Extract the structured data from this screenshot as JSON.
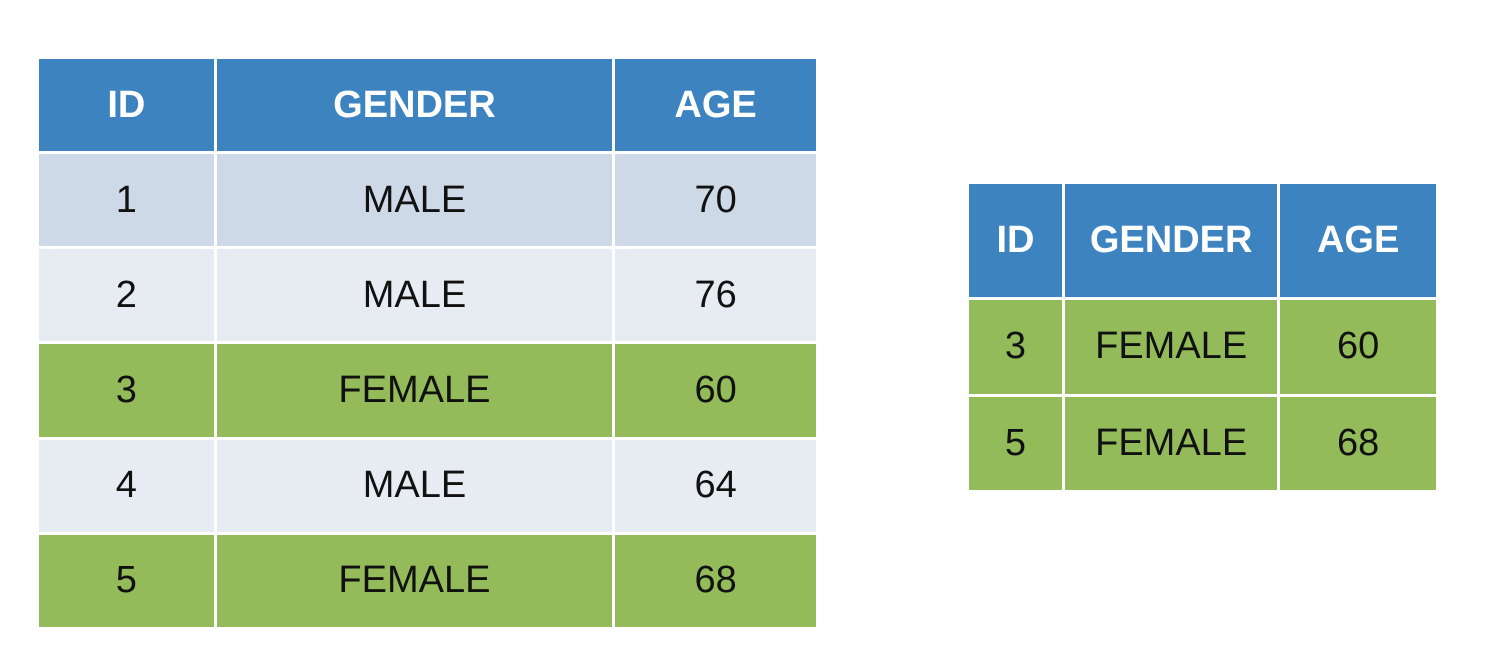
{
  "colors": {
    "header_bg": "#3d83c0",
    "header_text": "#ffffff",
    "row_light_blue": "#cdd9e6",
    "row_pale": "#e7ecf3",
    "highlight_green": "#94bb5a"
  },
  "main_table": {
    "columns": [
      "ID",
      "GENDER",
      "AGE"
    ],
    "rows": [
      {
        "id": "1",
        "gender": "MALE",
        "age": "70",
        "highlighted": false
      },
      {
        "id": "2",
        "gender": "MALE",
        "age": "76",
        "highlighted": false
      },
      {
        "id": "3",
        "gender": "FEMALE",
        "age": "60",
        "highlighted": true
      },
      {
        "id": "4",
        "gender": "MALE",
        "age": "64",
        "highlighted": false
      },
      {
        "id": "5",
        "gender": "FEMALE",
        "age": "68",
        "highlighted": true
      }
    ]
  },
  "filtered_table": {
    "columns": [
      "ID",
      "GENDER",
      "AGE"
    ],
    "rows": [
      {
        "id": "3",
        "gender": "FEMALE",
        "age": "60"
      },
      {
        "id": "5",
        "gender": "FEMALE",
        "age": "68"
      }
    ]
  }
}
